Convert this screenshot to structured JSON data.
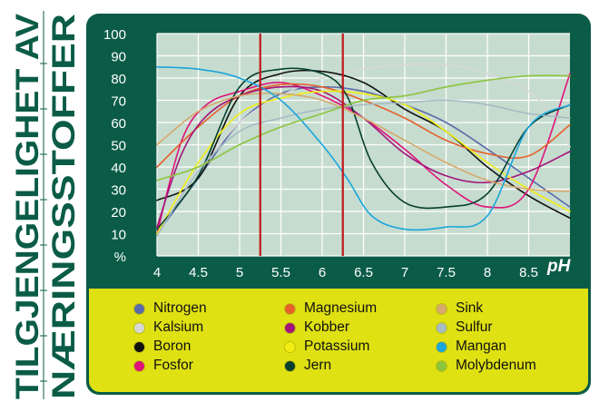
{
  "side_title": {
    "line1": "TILGJENGELIGHET AV",
    "line2": "NÆRINGSSTOFFER",
    "color": "#0b5c47"
  },
  "colors": {
    "panel": "#0b5c47",
    "plot": "#c6dccf",
    "grid": "#ffffff",
    "legend_box": "#dfe112",
    "marker_lines": "#c0181d"
  },
  "chart_data": {
    "type": "line",
    "title": "TILGJENGELIGHET AV NÆRINGSSTOFFER",
    "xlabel": "pH",
    "ylabel": "%",
    "xlim": [
      4,
      9
    ],
    "ylim": [
      0,
      100
    ],
    "x_ticks": [
      "4",
      "4.5",
      "5",
      "5.5",
      "6",
      "6.5",
      "7",
      "7.5",
      "8",
      "8.5"
    ],
    "y_ticks": [
      "100",
      "90",
      "80",
      "70",
      "60",
      "50",
      "40",
      "30",
      "20",
      "10",
      "%"
    ],
    "grid": true,
    "vertical_markers": [
      5.25,
      6.25
    ],
    "series": [
      {
        "name": "Nitrogen",
        "color": "#5a6aa8",
        "points": [
          [
            4,
            10
          ],
          [
            4.5,
            35
          ],
          [
            5,
            60
          ],
          [
            5.5,
            73
          ],
          [
            6,
            76
          ],
          [
            6.5,
            74
          ],
          [
            7,
            68
          ],
          [
            7.5,
            60
          ],
          [
            8,
            48
          ],
          [
            8.5,
            35
          ],
          [
            9,
            22
          ]
        ]
      },
      {
        "name": "Kalsium",
        "color": "#d8d8d8",
        "points": [
          [
            4,
            12
          ],
          [
            4.5,
            38
          ],
          [
            5,
            60
          ],
          [
            5.5,
            72
          ],
          [
            6,
            80
          ],
          [
            6.5,
            84
          ],
          [
            7,
            86
          ],
          [
            7.5,
            86
          ],
          [
            8,
            82
          ],
          [
            8.5,
            74
          ],
          [
            8.8,
            62
          ],
          [
            9,
            49
          ]
        ]
      },
      {
        "name": "Boron",
        "color": "#111111",
        "points": [
          [
            4,
            25
          ],
          [
            4.5,
            35
          ],
          [
            5,
            72
          ],
          [
            5.5,
            82
          ],
          [
            6,
            83
          ],
          [
            6.5,
            78
          ],
          [
            7,
            66
          ],
          [
            7.5,
            56
          ],
          [
            8,
            40
          ],
          [
            8.5,
            27
          ],
          [
            9,
            17
          ]
        ]
      },
      {
        "name": "Fosfor",
        "color": "#e0127a",
        "points": [
          [
            4,
            10
          ],
          [
            4.3,
            52
          ],
          [
            4.6,
            68
          ],
          [
            5,
            74
          ],
          [
            5.5,
            78
          ],
          [
            6,
            72
          ],
          [
            6.5,
            62
          ],
          [
            7,
            48
          ],
          [
            7.5,
            32
          ],
          [
            8,
            22
          ],
          [
            8.5,
            30
          ],
          [
            9,
            82
          ]
        ]
      },
      {
        "name": "Magnesium",
        "color": "#e5602a",
        "points": [
          [
            4,
            40
          ],
          [
            4.5,
            58
          ],
          [
            5,
            72
          ],
          [
            5.5,
            77
          ],
          [
            6,
            76
          ],
          [
            6.5,
            70
          ],
          [
            7,
            62
          ],
          [
            7.5,
            52
          ],
          [
            8,
            46
          ],
          [
            8.5,
            45
          ],
          [
            9,
            59
          ]
        ]
      },
      {
        "name": "Kobber",
        "color": "#a3147a",
        "points": [
          [
            4,
            13
          ],
          [
            4.3,
            46
          ],
          [
            4.6,
            63
          ],
          [
            5,
            72
          ],
          [
            5.5,
            76
          ],
          [
            6,
            74
          ],
          [
            6.5,
            62
          ],
          [
            7,
            46
          ],
          [
            7.5,
            36
          ],
          [
            8,
            33
          ],
          [
            8.5,
            38
          ],
          [
            9,
            47
          ]
        ]
      },
      {
        "name": "Potassium",
        "color": "#f2ee12",
        "points": [
          [
            4,
            10
          ],
          [
            4.5,
            42
          ],
          [
            5,
            64
          ],
          [
            5.5,
            71
          ],
          [
            6,
            74
          ],
          [
            6.5,
            73
          ],
          [
            7,
            68
          ],
          [
            7.5,
            56
          ],
          [
            8,
            42
          ],
          [
            8.5,
            30
          ],
          [
            9,
            20
          ]
        ]
      },
      {
        "name": "Jern",
        "color": "#06402e",
        "points": [
          [
            4,
            12
          ],
          [
            4.5,
            36
          ],
          [
            5,
            76
          ],
          [
            5.5,
            84
          ],
          [
            6,
            82
          ],
          [
            6.3,
            72
          ],
          [
            6.6,
            42
          ],
          [
            7,
            24
          ],
          [
            7.5,
            22
          ],
          [
            8,
            28
          ],
          [
            8.5,
            58
          ],
          [
            9,
            68
          ]
        ]
      },
      {
        "name": "Sink",
        "color": "#d7a96c",
        "points": [
          [
            4,
            50
          ],
          [
            4.5,
            65
          ],
          [
            5,
            72
          ],
          [
            5.5,
            73
          ],
          [
            6,
            70
          ],
          [
            6.5,
            62
          ],
          [
            7,
            52
          ],
          [
            7.5,
            42
          ],
          [
            8,
            34
          ],
          [
            8.5,
            30
          ],
          [
            9,
            29
          ]
        ]
      },
      {
        "name": "Sulfur",
        "color": "#a6bcc4",
        "points": [
          [
            4,
            9
          ],
          [
            4.5,
            38
          ],
          [
            5,
            56
          ],
          [
            5.5,
            62
          ],
          [
            6,
            66
          ],
          [
            6.5,
            68
          ],
          [
            7,
            69
          ],
          [
            7.5,
            70
          ],
          [
            8,
            68
          ],
          [
            8.5,
            64
          ],
          [
            9,
            62
          ]
        ]
      },
      {
        "name": "Mangan",
        "color": "#1aa6dd",
        "points": [
          [
            4,
            85
          ],
          [
            4.5,
            84
          ],
          [
            5,
            80
          ],
          [
            5.5,
            70
          ],
          [
            6,
            50
          ],
          [
            6.3,
            35
          ],
          [
            6.6,
            18
          ],
          [
            7,
            12
          ],
          [
            7.5,
            13
          ],
          [
            8,
            18
          ],
          [
            8.5,
            58
          ],
          [
            9,
            68
          ]
        ]
      },
      {
        "name": "Molybdenum",
        "color": "#8cc43c",
        "points": [
          [
            4,
            34
          ],
          [
            4.5,
            40
          ],
          [
            5,
            50
          ],
          [
            5.5,
            58
          ],
          [
            6,
            64
          ],
          [
            6.5,
            70
          ],
          [
            7,
            72
          ],
          [
            7.5,
            76
          ],
          [
            8,
            79
          ],
          [
            8.5,
            81
          ],
          [
            9,
            81
          ]
        ]
      }
    ]
  },
  "legend": [
    {
      "label": "Nitrogen",
      "color": "#5a6aa8"
    },
    {
      "label": "Kalsium",
      "color": "#d8d8d8"
    },
    {
      "label": "Boron",
      "color": "#111111"
    },
    {
      "label": "Fosfor",
      "color": "#e0127a"
    },
    {
      "label": "Magnesium",
      "color": "#e5602a"
    },
    {
      "label": "Kobber",
      "color": "#a3147a"
    },
    {
      "label": "Potassium",
      "color": "#f2ee12"
    },
    {
      "label": "Jern",
      "color": "#06402e"
    },
    {
      "label": "Sink",
      "color": "#d7a96c"
    },
    {
      "label": "Sulfur",
      "color": "#a6bcc4"
    },
    {
      "label": "Mangan",
      "color": "#1aa6dd"
    },
    {
      "label": "Molybdenum",
      "color": "#8cc43c"
    }
  ]
}
